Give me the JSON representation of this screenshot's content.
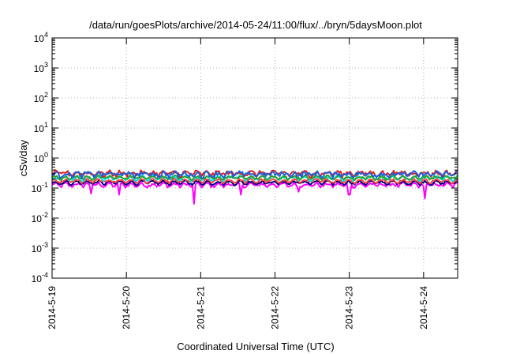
{
  "chart_data": {
    "type": "line",
    "title": "/data/run/goesPlots/archive/2014-05-24/11:00/flux/../bryn/5daysMoon.plot",
    "xlabel": "Coordinated Universal Time (UTC)",
    "ylabel": "cSv/day",
    "y_scale": "log",
    "ylim": [
      0.0001,
      10000
    ],
    "y_ticks": [
      {
        "base": "10",
        "exp": "-4"
      },
      {
        "base": "10",
        "exp": "-3"
      },
      {
        "base": "10",
        "exp": "-2"
      },
      {
        "base": "10",
        "exp": "-1"
      },
      {
        "base": "10",
        "exp": "0"
      },
      {
        "base": "10",
        "exp": "1"
      },
      {
        "base": "10",
        "exp": "2"
      },
      {
        "base": "10",
        "exp": "3"
      },
      {
        "base": "10",
        "exp": "4"
      }
    ],
    "xlim": [
      "2014-05-19 00:00",
      "2014-05-24 11:00"
    ],
    "x_tick_labels": [
      "2014-5-19",
      "2014-5-20",
      "2014-5-21",
      "2014-5-22",
      "2014-5-23",
      "2014-5-24"
    ],
    "grid": true,
    "series": [
      {
        "color": "#ff00ff",
        "level": 0.125,
        "spread": 0.25,
        "dips": [
          [
            "2014-05-19 12:30",
            0.065
          ],
          [
            "2014-05-19 21:30",
            0.06
          ],
          [
            "2014-05-20 22:00",
            0.03
          ],
          [
            "2014-05-21 13:00",
            0.06
          ],
          [
            "2014-05-22 07:30",
            0.075
          ],
          [
            "2014-05-23 00:00",
            0.06
          ],
          [
            "2014-05-24 00:30",
            0.045
          ]
        ]
      },
      {
        "color": "#000080",
        "level": 0.15,
        "spread": 0.18
      },
      {
        "color": "#ff4040",
        "level": 0.17,
        "spread": 0.18
      },
      {
        "color": "#00e5e5",
        "level": 0.21,
        "spread": 0.25
      },
      {
        "color": "#2f9f2f",
        "level": 0.22,
        "spread": 0.2
      },
      {
        "color": "#e02020",
        "level": 0.3,
        "spread": 0.35
      },
      {
        "color": "#1e5fd8",
        "level": 0.28,
        "spread": 0.38
      }
    ]
  }
}
